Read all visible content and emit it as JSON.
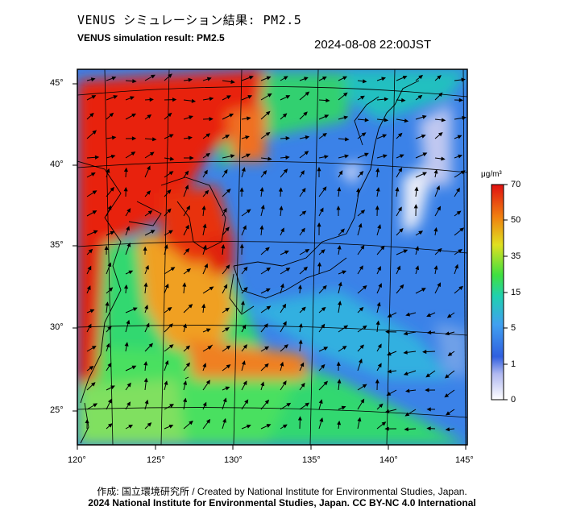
{
  "title_jp": "VENUS シミュレーション結果: PM2.5",
  "title_en": "VENUS simulation result: PM2.5",
  "timestamp": "2024-08-08 22:00JST",
  "colorbar": {
    "unit": "μg/m³",
    "ticks": [
      "70",
      "50",
      "35",
      "15",
      "5",
      "1",
      "0"
    ],
    "colors": [
      "#ffffff",
      "#2060e0",
      "#40a0f0",
      "#20d0a0",
      "#40e040",
      "#e8e020",
      "#f07010",
      "#e02010"
    ]
  },
  "lat_labels": [
    "45°",
    "40°",
    "35°",
    "30°",
    "25°"
  ],
  "lon_labels": [
    "120°",
    "125°",
    "130°",
    "135°",
    "140°",
    "145°"
  ],
  "credit_line1": "作成: 国立環境研究所 / Created by National Institute for Environmental Studies, Japan.",
  "credit_line2": "2024 National Institute for Environmental Studies, Japan. CC BY-NC 4.0 International"
}
